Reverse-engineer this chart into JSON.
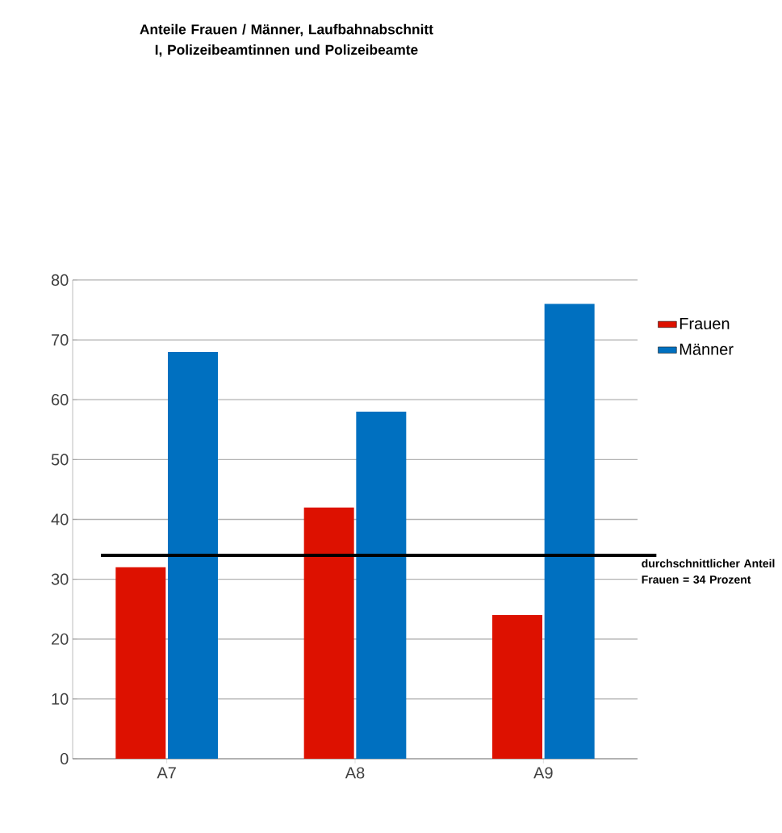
{
  "chart_data": {
    "type": "bar",
    "title": "Anteile Frauen / Männer, Laufbahnabschnitt I, Polizeibeamtinnen und Polizeibeamte",
    "categories": [
      "A7",
      "A8",
      "A9"
    ],
    "series": [
      {
        "name": "Frauen",
        "color": "#dd1100",
        "values": [
          32,
          42,
          24
        ]
      },
      {
        "name": "Männer",
        "color": "#0070c0",
        "values": [
          68,
          58,
          76
        ]
      }
    ],
    "ylim": [
      0,
      80
    ],
    "yticks": [
      0,
      10,
      20,
      30,
      40,
      50,
      60,
      70,
      80
    ],
    "grid": "y",
    "legend": "right",
    "ref_lines": [
      {
        "axis": "y",
        "value": 34,
        "label": "durchschnittlicher Anteil Frauen = 34 Prozent",
        "color": "#000000"
      }
    ]
  }
}
